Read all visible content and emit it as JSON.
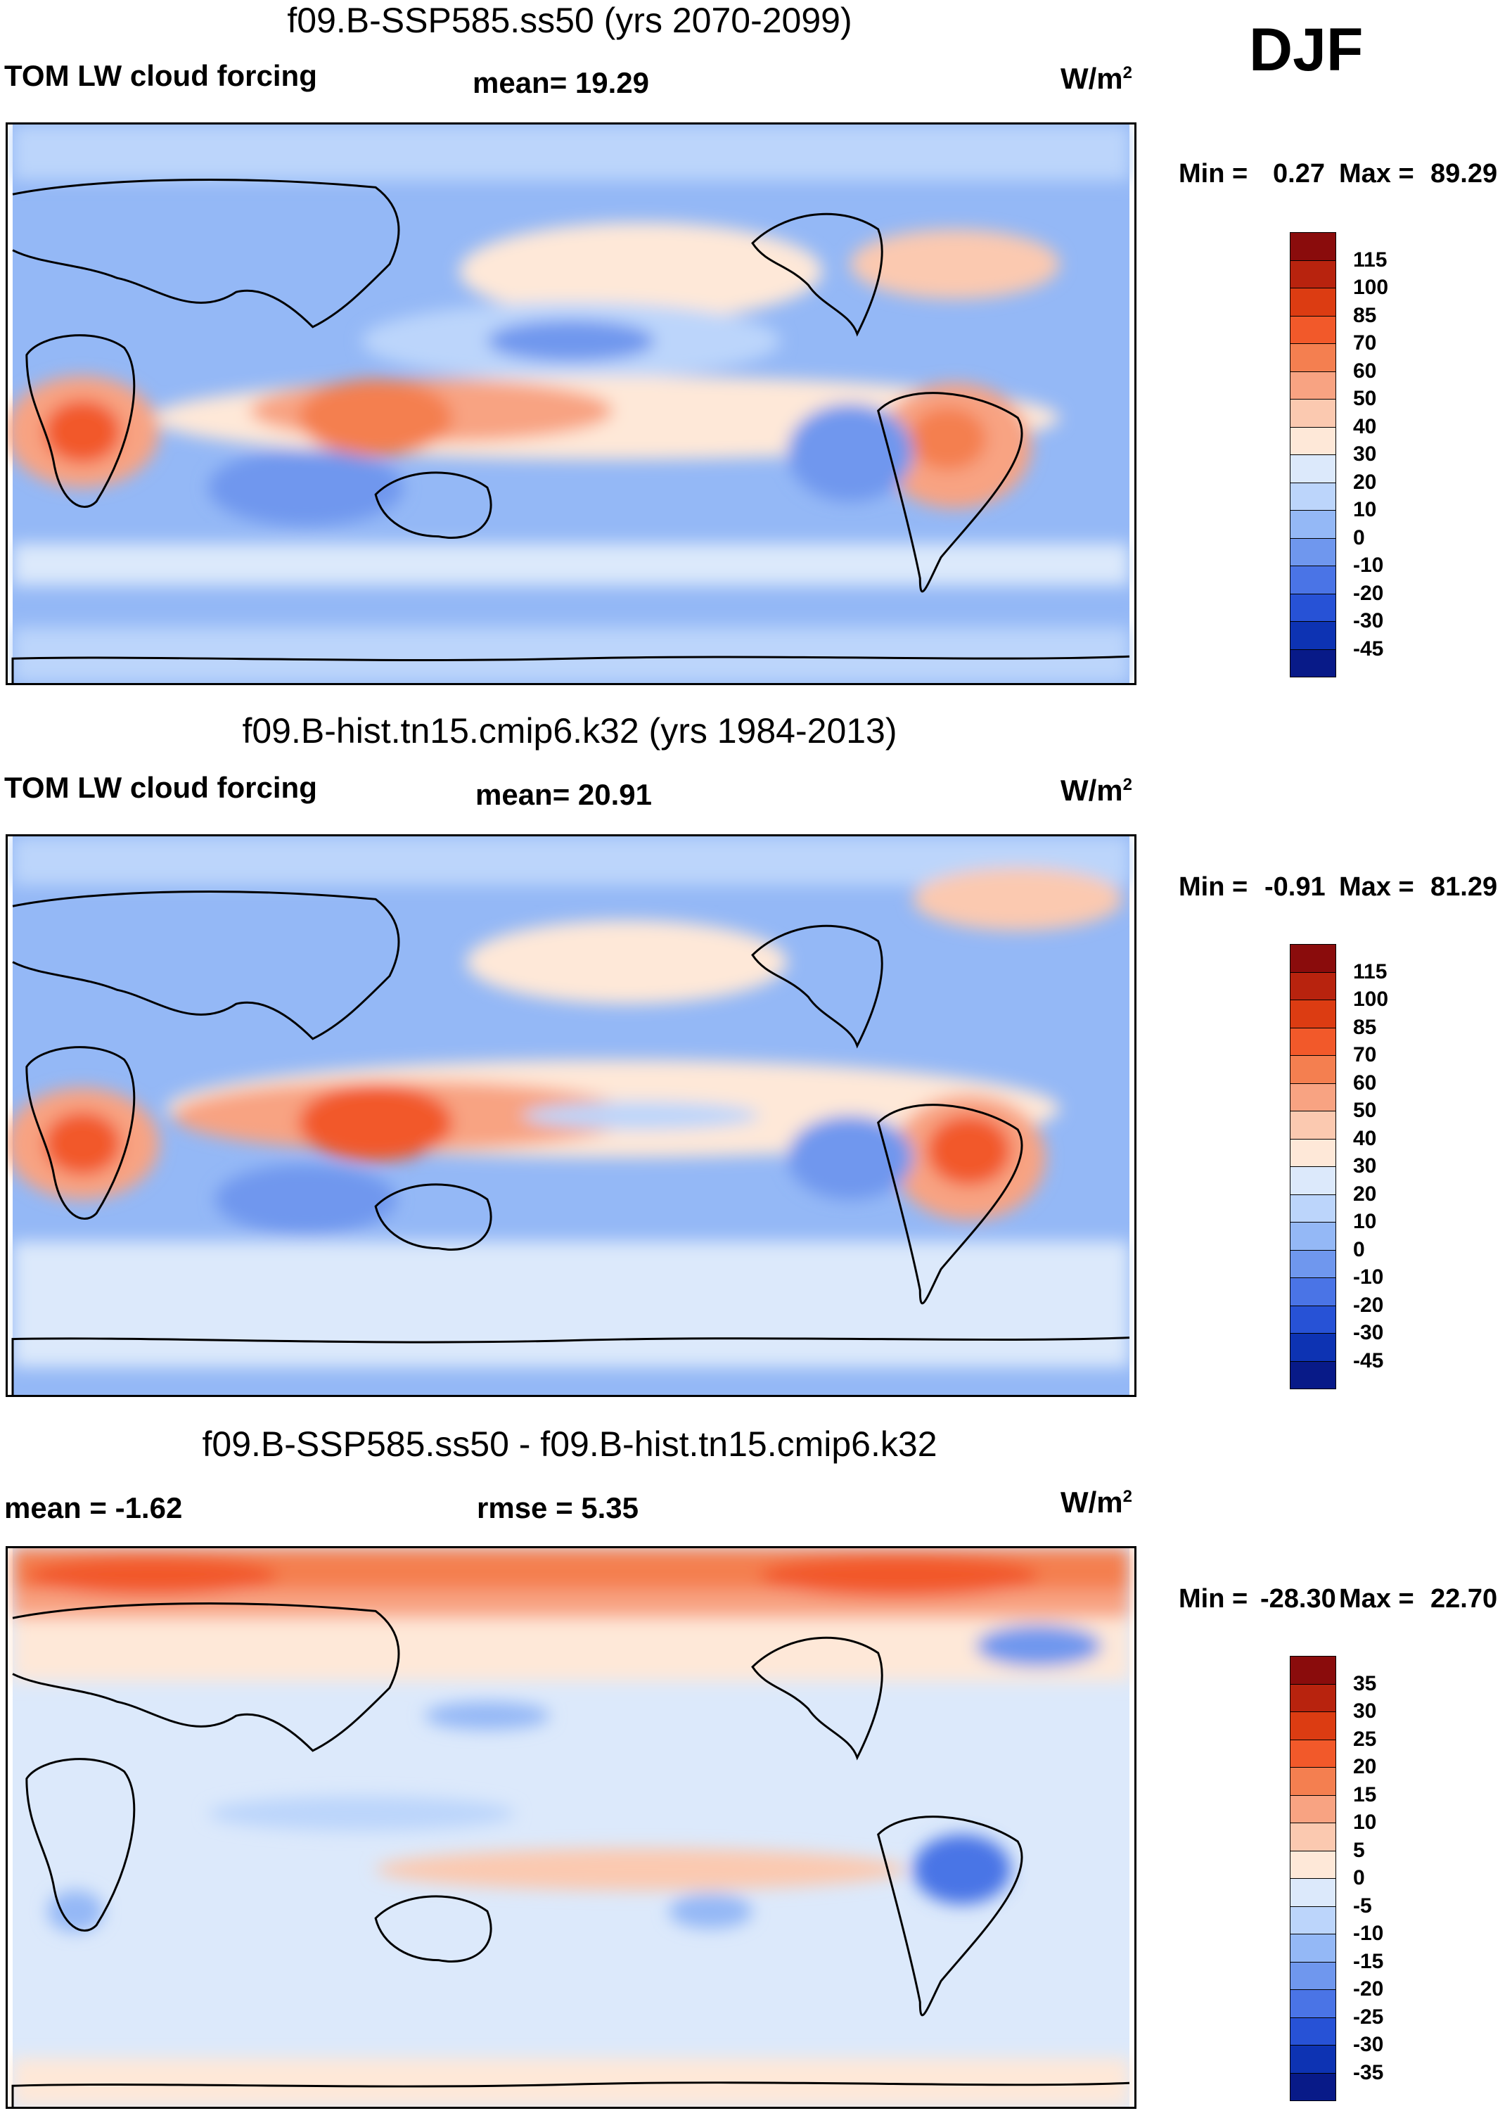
{
  "season": "DJF",
  "colors": {
    "land_outline": "#000000",
    "panel_border": "#000000"
  },
  "chart_data": [
    {
      "type": "heatmap",
      "title": "f09.B-SSP585.ss50 (yrs 2070-2099)",
      "left_label": "TOM LW cloud forcing",
      "center_label": "mean=  19.29",
      "units": "W/m",
      "units_sup": "2",
      "min_label": "Min =",
      "min_value": "0.27",
      "max_label": "Max =",
      "max_value": "89.29",
      "colorbar": {
        "levels": [
          "115",
          "100",
          "85",
          "70",
          "60",
          "50",
          "40",
          "30",
          "20",
          "10",
          "0",
          "-10",
          "-20",
          "-30",
          "-45"
        ],
        "colors": [
          "#8a0c0c",
          "#b8230e",
          "#dc3c12",
          "#f2592a",
          "#f47f50",
          "#f8a382",
          "#fbc9b0",
          "#fee8d8",
          "#dce9fb",
          "#bcd5fb",
          "#94b8f6",
          "#6f97ee",
          "#4a74e6",
          "#2752d6",
          "#0d33b3",
          "#081a88"
        ]
      }
    },
    {
      "type": "heatmap",
      "title": "f09.B-hist.tn15.cmip6.k32 (yrs 1984-2013)",
      "left_label": "TOM LW cloud forcing",
      "center_label": "mean=  20.91",
      "units": "W/m",
      "units_sup": "2",
      "min_label": "Min =",
      "min_value": "-0.91",
      "max_label": "Max =",
      "max_value": "81.29",
      "colorbar": {
        "levels": [
          "115",
          "100",
          "85",
          "70",
          "60",
          "50",
          "40",
          "30",
          "20",
          "10",
          "0",
          "-10",
          "-20",
          "-30",
          "-45"
        ],
        "colors": [
          "#8a0c0c",
          "#b8230e",
          "#dc3c12",
          "#f2592a",
          "#f47f50",
          "#f8a382",
          "#fbc9b0",
          "#fee8d8",
          "#dce9fb",
          "#bcd5fb",
          "#94b8f6",
          "#6f97ee",
          "#4a74e6",
          "#2752d6",
          "#0d33b3",
          "#081a88"
        ]
      }
    },
    {
      "type": "heatmap",
      "title": "f09.B-SSP585.ss50 - f09.B-hist.tn15.cmip6.k32",
      "left_label": "mean =  -1.62",
      "center_label": "rmse =    5.35",
      "units": "W/m",
      "units_sup": "2",
      "min_label": "Min =",
      "min_value": "-28.30",
      "max_label": "Max =",
      "max_value": "22.70",
      "colorbar": {
        "levels": [
          "35",
          "30",
          "25",
          "20",
          "15",
          "10",
          "5",
          "0",
          "-5",
          "-10",
          "-15",
          "-20",
          "-25",
          "-30",
          "-35"
        ],
        "colors": [
          "#8a0c0c",
          "#b8230e",
          "#dc3c12",
          "#f2592a",
          "#f47f50",
          "#f8a382",
          "#fbc9b0",
          "#fee8d8",
          "#dce9fb",
          "#bcd5fb",
          "#94b8f6",
          "#6f97ee",
          "#4a74e6",
          "#2752d6",
          "#0d33b3",
          "#081a88"
        ]
      }
    }
  ]
}
